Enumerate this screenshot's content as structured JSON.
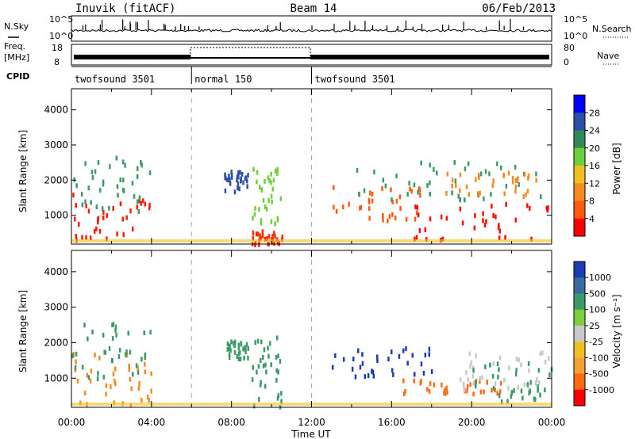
{
  "header": {
    "station": "Inuvik (fitACF)",
    "beam": "Beam 14",
    "date": "06/Feb/2013"
  },
  "summary_panel": {
    "nsky_label": "N.Sky",
    "nsky_ticks": [
      "10^5",
      "10^0"
    ],
    "nsearch_label": "N.Search",
    "nsearch_ticks": [
      "10^5",
      "10^0"
    ],
    "freq_label_line1": "Freq.",
    "freq_label_line2": "[MHz]",
    "freq_ticks": [
      "18",
      "8"
    ],
    "nave_label": "Nave",
    "nave_ticks": [
      "80",
      "0"
    ],
    "cpid_label": "CPID",
    "cpid_segments": [
      {
        "name": "twofsound 3501",
        "start": 0,
        "end": 6
      },
      {
        "name": "normal 150",
        "start": 6,
        "end": 12
      },
      {
        "name": "twofsound 3501",
        "start": 12,
        "end": 24
      }
    ]
  },
  "chart_data": [
    {
      "type": "heatmap",
      "title": "",
      "xlabel": "",
      "ylabel": "Slant Range [km]",
      "xlim": [
        0,
        24
      ],
      "ylim": [
        180,
        4600
      ],
      "yticks": [
        "1000",
        "2000",
        "3000",
        "4000"
      ],
      "colorbar_label": "Power [dB]",
      "colorbar_ticks": [
        "4",
        "8",
        "12",
        "16",
        "20",
        "24",
        "28"
      ],
      "colorbar_colors": [
        "#0000ff",
        "#2e4fa8",
        "#2f8a5a",
        "#6fcf3a",
        "#f0c020",
        "#f58a20",
        "#ff5a10",
        "#ff0000"
      ],
      "scatter_regions": [
        {
          "t0": 0.0,
          "t1": 4.0,
          "r0": 350,
          "r1": 1650,
          "color": "#ff1a00"
        },
        {
          "t0": 0.0,
          "t1": 4.0,
          "r0": 1100,
          "r1": 2800,
          "color": "#3a9a6a"
        },
        {
          "t0": 7.6,
          "t1": 8.8,
          "r0": 1700,
          "r1": 2300,
          "color": "#2e4fa8"
        },
        {
          "t0": 9.0,
          "t1": 10.5,
          "r0": 800,
          "r1": 2400,
          "color": "#6fcf3a"
        },
        {
          "t0": 9.0,
          "t1": 10.5,
          "r0": 200,
          "r1": 600,
          "color": "#ff2a00"
        },
        {
          "t0": 13.0,
          "t1": 17.5,
          "r0": 900,
          "r1": 1900,
          "color": "#ff5a10"
        },
        {
          "t0": 14.0,
          "t1": 24.0,
          "r0": 1500,
          "r1": 2600,
          "color": "#3a9a6a"
        },
        {
          "t0": 17.0,
          "t1": 24.0,
          "r0": 350,
          "r1": 1400,
          "color": "#ff0a00"
        },
        {
          "t0": 18.5,
          "t1": 23.5,
          "r0": 1600,
          "r1": 2300,
          "color": "#f58a20"
        }
      ]
    },
    {
      "type": "heatmap",
      "title": "",
      "xlabel": "Time UT",
      "ylabel": "Slant Range [km]",
      "xlim": [
        0,
        24
      ],
      "ylim": [
        180,
        4600
      ],
      "xticks": [
        "00:00",
        "04:00",
        "08:00",
        "12:00",
        "16:00",
        "20:00",
        "00:00"
      ],
      "yticks": [
        "1000",
        "2000",
        "3000",
        "4000"
      ],
      "colorbar_label": "Velocity [m s⁻¹]",
      "colorbar_ticks": [
        "1000",
        "500",
        "100",
        "25",
        "-25",
        "-100",
        "-500",
        "-1000"
      ],
      "colorbar_colors": [
        "#1a3cb4",
        "#3a6aa0",
        "#3a9a6a",
        "#7cd040",
        "#c8c8c8",
        "#f0c020",
        "#f5a030",
        "#ff6a10",
        "#ff0000"
      ],
      "scatter_regions": [
        {
          "t0": 0.0,
          "t1": 4.0,
          "r0": 300,
          "r1": 1800,
          "color": "#f58a20"
        },
        {
          "t0": 0.0,
          "t1": 4.0,
          "r0": 1000,
          "r1": 2600,
          "color": "#3a9a6a"
        },
        {
          "t0": 7.6,
          "t1": 8.8,
          "r0": 1600,
          "r1": 2100,
          "color": "#3a9a6a"
        },
        {
          "t0": 9.0,
          "t1": 10.5,
          "r0": 200,
          "r1": 2300,
          "color": "#3a9a6a"
        },
        {
          "t0": 13.0,
          "t1": 18.0,
          "r0": 1100,
          "r1": 1900,
          "color": "#1a3cb4"
        },
        {
          "t0": 16.5,
          "t1": 21.5,
          "r0": 600,
          "r1": 1000,
          "color": "#ff6a10"
        },
        {
          "t0": 19.0,
          "t1": 24.0,
          "r0": 700,
          "r1": 1800,
          "color": "#c8c8c8"
        },
        {
          "t0": 20.0,
          "t1": 24.0,
          "r0": 400,
          "r1": 1500,
          "color": "#3a9a6a"
        }
      ]
    }
  ]
}
